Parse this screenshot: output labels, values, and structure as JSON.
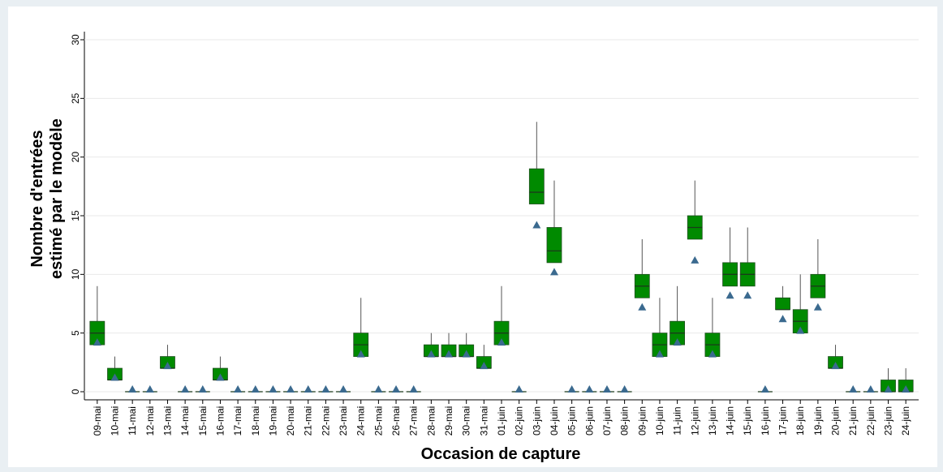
{
  "chart_data": {
    "type": "box",
    "ylabel": [
      "Nombre d'entrées",
      "estimé par le modèle"
    ],
    "xlabel": "Occasion de capture",
    "categories": [
      "09-mai",
      "10-mai",
      "11-mai",
      "12-mai",
      "13-mai",
      "14-mai",
      "15-mai",
      "16-mai",
      "17-mai",
      "18-mai",
      "19-mai",
      "20-mai",
      "21-mai",
      "22-mai",
      "23-mai",
      "24-mai",
      "25-mai",
      "26-mai",
      "27-mai",
      "28-mai",
      "29-mai",
      "30-mai",
      "31-mai",
      "01-juin",
      "02-juin",
      "03-juin",
      "04-juin",
      "05-juin",
      "06-juin",
      "07-juin",
      "08-juin",
      "09-juin",
      "10-juin",
      "11-juin",
      "12-juin",
      "13-juin",
      "14-juin",
      "15-juin",
      "16-juin",
      "17-juin",
      "18-juin",
      "19-juin",
      "20-juin",
      "21-juin",
      "22-juin",
      "23-juin",
      "24-juin"
    ],
    "q1": [
      4,
      1,
      0,
      0,
      2,
      0,
      0,
      1,
      0,
      0,
      0,
      0,
      0,
      0,
      0,
      3,
      0,
      0,
      0,
      3,
      3,
      3,
      2,
      4,
      0,
      16,
      11,
      0,
      0,
      0,
      0,
      8,
      3,
      4,
      13,
      3,
      9,
      9,
      0,
      7,
      5,
      8,
      2,
      0,
      0,
      0,
      0
    ],
    "median": [
      5,
      1,
      0,
      0,
      2,
      0,
      0,
      1,
      0,
      0,
      0,
      0,
      0,
      0,
      0,
      4,
      0,
      0,
      0,
      3,
      3,
      3,
      2,
      5,
      0,
      17,
      12,
      0,
      0,
      0,
      0,
      9,
      4,
      5,
      14,
      4,
      10,
      10,
      0,
      7,
      6,
      9,
      2,
      0,
      0,
      0,
      0
    ],
    "q3": [
      6,
      2,
      0,
      0,
      3,
      0,
      0,
      2,
      0,
      0,
      0,
      0,
      0,
      0,
      0,
      5,
      0,
      0,
      0,
      4,
      4,
      4,
      3,
      6,
      0,
      19,
      14,
      0,
      0,
      0,
      0,
      10,
      5,
      6,
      15,
      5,
      11,
      11,
      0,
      8,
      7,
      10,
      3,
      0,
      0,
      1,
      1
    ],
    "whisker_high": [
      9,
      3,
      0,
      0,
      4,
      0,
      0,
      3,
      0,
      0,
      0,
      0,
      0,
      0,
      0,
      8,
      0,
      0,
      0,
      5,
      5,
      5,
      4,
      9,
      0,
      23,
      18,
      0,
      0,
      0,
      0,
      13,
      8,
      9,
      18,
      8,
      14,
      14,
      0,
      9,
      10,
      13,
      4,
      0,
      0,
      2,
      2
    ],
    "observed": [
      4,
      1,
      0,
      0,
      2,
      0,
      0,
      1,
      0,
      0,
      0,
      0,
      0,
      0,
      0,
      3,
      0,
      0,
      0,
      3,
      3,
      3,
      2,
      4,
      0,
      14,
      10,
      0,
      0,
      0,
      0,
      7,
      3,
      4,
      11,
      3,
      8,
      8,
      0,
      6,
      5,
      7,
      2,
      0,
      0,
      0,
      0
    ],
    "box_color": "#008a00",
    "median_color": "#1a3a1a",
    "marker_color": "#3b6a8f",
    "ylim": [
      0,
      30
    ],
    "yticks": [
      0,
      5,
      10,
      15,
      20,
      25,
      30
    ],
    "grid": true
  }
}
